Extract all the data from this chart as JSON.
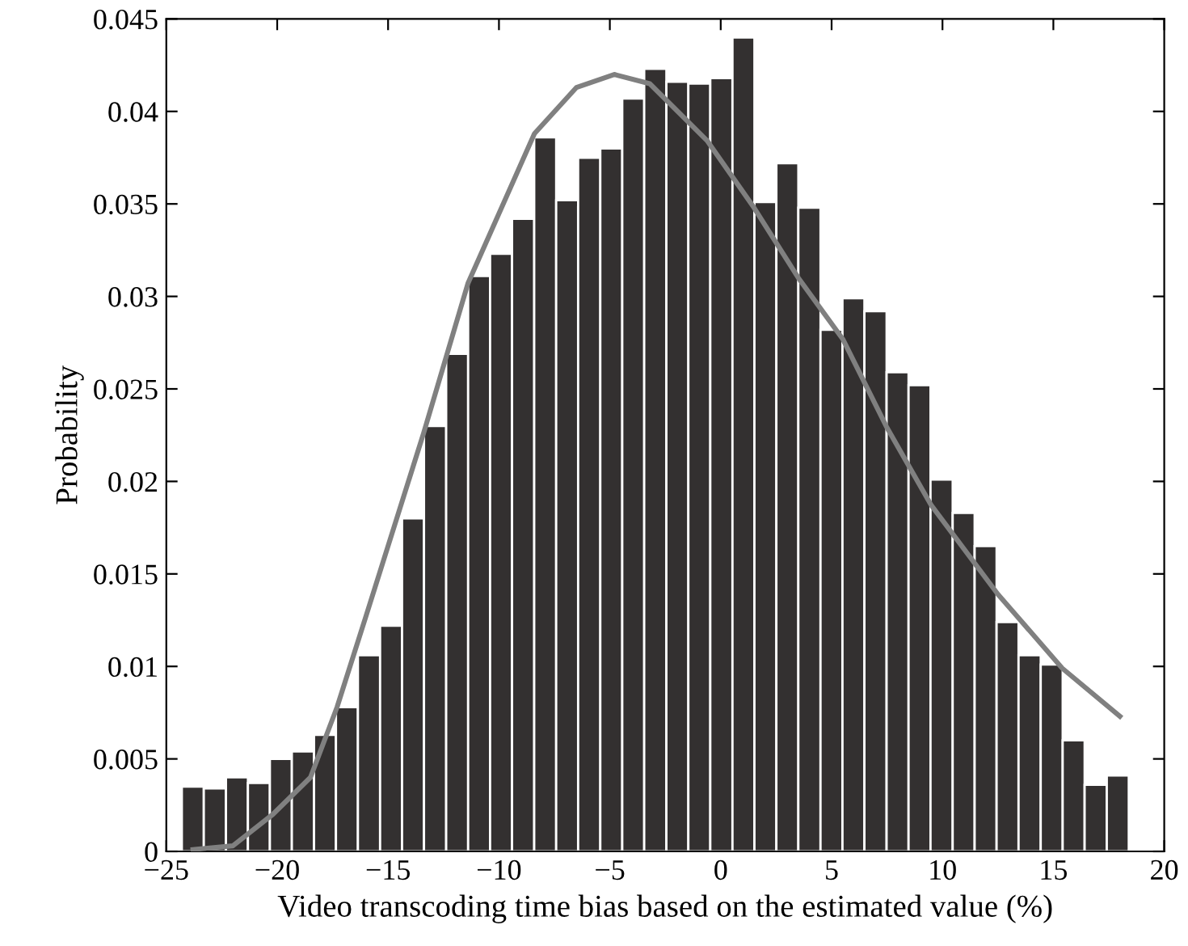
{
  "chart_data": {
    "type": "histogram",
    "xlabel": "Video transcoding time bias based on the estimated value (%)",
    "ylabel": "Probability",
    "bins": [
      -24.3,
      -23.31,
      -22.31,
      -21.32,
      -20.33,
      -19.34,
      -18.34,
      -17.35,
      -16.36,
      -15.36,
      -14.37,
      -13.38,
      -12.38,
      -11.39,
      -10.4,
      -9.41,
      -8.41,
      -7.42,
      -6.43,
      -5.43,
      -4.44,
      -3.45,
      -2.45,
      -1.46,
      -0.47,
      0.53,
      1.52,
      2.51,
      3.5,
      4.5,
      5.49,
      6.48,
      7.48,
      8.47,
      9.46,
      10.46,
      11.45,
      12.44,
      13.43,
      14.43,
      15.42,
      16.41,
      17.41,
      18.4
    ],
    "values": [
      0.0035,
      0.0034,
      0.004,
      0.0037,
      0.005,
      0.0054,
      0.0063,
      0.0078,
      0.0106,
      0.0122,
      0.018,
      0.023,
      0.0269,
      0.0311,
      0.0323,
      0.0342,
      0.0386,
      0.0352,
      0.0375,
      0.038,
      0.0407,
      0.0423,
      0.0416,
      0.0415,
      0.0418,
      0.044,
      0.0351,
      0.0372,
      0.0348,
      0.0282,
      0.0299,
      0.0292,
      0.0259,
      0.0252,
      0.0201,
      0.0183,
      0.0165,
      0.0124,
      0.0106,
      0.0101,
      0.006,
      0.0036,
      0.0041
    ],
    "color": "#333030",
    "series": [
      {
        "type": "line",
        "color": "#808080",
        "x": [
          -23.8,
          -22,
          -20.2,
          -18.5,
          -17.3,
          -16,
          -13.4,
          -11.4,
          -8.4,
          -6.5,
          -4.8,
          -3.2,
          -0.6,
          1.5,
          3.5,
          5.5,
          7.5,
          9.5,
          12.5,
          15.4,
          18.0
        ],
        "values": [
          0.0001,
          0.0003,
          0.002,
          0.004,
          0.0078,
          0.0127,
          0.0226,
          0.0307,
          0.0388,
          0.0413,
          0.042,
          0.0415,
          0.0384,
          0.0348,
          0.031,
          0.0277,
          0.0229,
          0.0187,
          0.0139,
          0.0099,
          0.0073
        ]
      }
    ],
    "xlim": [
      -25,
      20
    ],
    "xticks": [
      {
        "value": -25,
        "label": "−25"
      },
      {
        "value": -20,
        "label": "−20"
      },
      {
        "value": -15,
        "label": "−15"
      },
      {
        "value": -10,
        "label": "−10"
      },
      {
        "value": -5,
        "label": "−5"
      },
      0,
      5,
      10,
      15,
      20
    ],
    "ylim": [
      0,
      0.045
    ],
    "yticks": [
      0,
      0.005,
      0.01,
      0.015,
      0.02,
      0.025,
      0.03,
      0.035,
      0.04,
      0.045
    ],
    "grid": false
  }
}
